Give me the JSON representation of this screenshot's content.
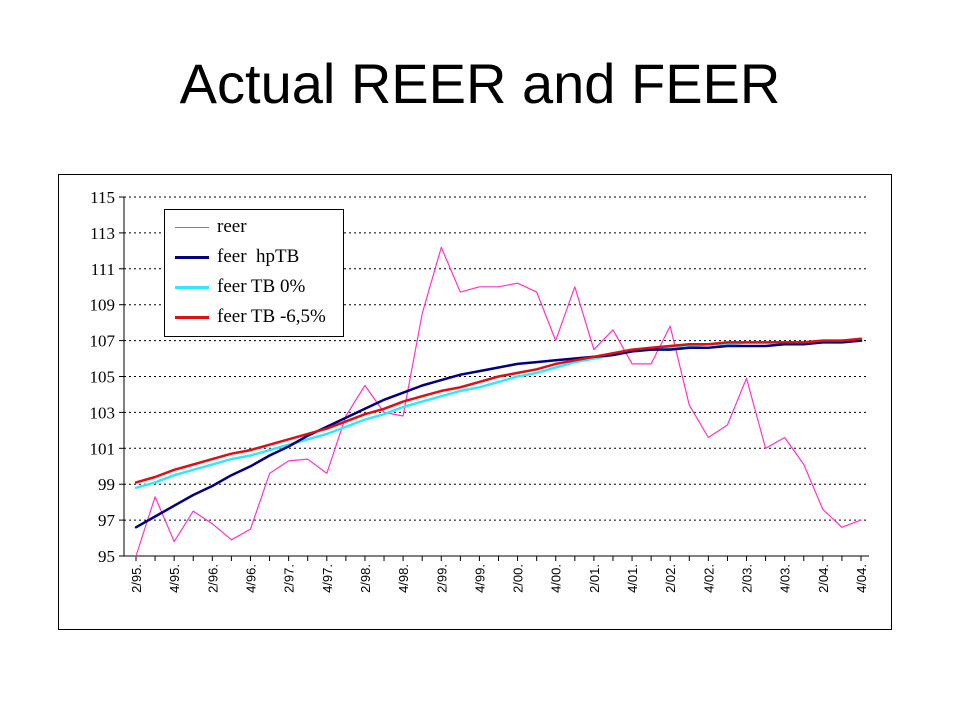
{
  "slide": {
    "title": "Actual REER and FEER"
  },
  "chart_data": {
    "type": "line",
    "title": "",
    "xlabel": "",
    "ylabel": "",
    "ylim": [
      95,
      115
    ],
    "yticks": [
      95,
      97,
      99,
      101,
      103,
      105,
      107,
      109,
      111,
      113,
      115
    ],
    "grid": "horizontal dotted",
    "legend_position": "top-left",
    "x_labels": [
      "2/95.",
      "4/95.",
      "2/96.",
      "4/96.",
      "2/97.",
      "4/97.",
      "2/98.",
      "4/98.",
      "2/99.",
      "4/99.",
      "2/00.",
      "4/00.",
      "2/01.",
      "4/01.",
      "2/02.",
      "4/02.",
      "2/03.",
      "4/03.",
      "2/04.",
      "4/04."
    ],
    "series": [
      {
        "name": "reer",
        "color": "#ff33cc",
        "values": [
          95.0,
          98.3,
          95.8,
          97.5,
          96.8,
          95.9,
          96.5,
          99.6,
          100.3,
          100.4,
          99.6,
          102.8,
          104.5,
          103.0,
          102.8,
          108.5,
          112.2,
          109.7,
          110.0,
          110.0,
          110.2,
          109.7,
          107.0,
          110.0,
          106.5,
          107.6,
          105.7,
          105.7,
          107.8,
          103.4,
          101.6,
          102.3,
          104.9,
          101.0,
          101.6,
          100.1,
          97.6,
          96.6,
          97.0
        ]
      },
      {
        "name": "feer  hpTB",
        "color": "#000080",
        "values": [
          96.6,
          97.2,
          97.8,
          98.4,
          98.9,
          99.5,
          100.0,
          100.6,
          101.1,
          101.7,
          102.2,
          102.7,
          103.2,
          103.7,
          104.1,
          104.5,
          104.8,
          105.1,
          105.3,
          105.5,
          105.7,
          105.8,
          105.9,
          106.0,
          106.1,
          106.2,
          106.4,
          106.5,
          106.5,
          106.6,
          106.6,
          106.7,
          106.7,
          106.7,
          106.8,
          106.8,
          106.9,
          106.9,
          107.0
        ]
      },
      {
        "name": "feer TB 0%",
        "color": "#33e6ff",
        "values": [
          98.8,
          99.1,
          99.5,
          99.8,
          100.1,
          100.4,
          100.6,
          100.9,
          101.2,
          101.5,
          101.8,
          102.2,
          102.6,
          102.9,
          103.3,
          103.6,
          103.9,
          104.2,
          104.4,
          104.7,
          105.0,
          105.2,
          105.5,
          105.8,
          106.0,
          106.2,
          106.4,
          106.5,
          106.6,
          106.7,
          106.8,
          106.8,
          106.9,
          106.9,
          106.9,
          106.9,
          107.0,
          107.0,
          107.0
        ]
      },
      {
        "name": "feer TB -6,5%",
        "color": "#dd1111",
        "values": [
          99.1,
          99.4,
          99.8,
          100.1,
          100.4,
          100.7,
          100.9,
          101.2,
          101.5,
          101.8,
          102.1,
          102.5,
          102.9,
          103.2,
          103.6,
          103.9,
          104.2,
          104.4,
          104.7,
          105.0,
          105.2,
          105.4,
          105.7,
          105.9,
          106.1,
          106.3,
          106.5,
          106.6,
          106.7,
          106.8,
          106.8,
          106.9,
          106.9,
          106.9,
          106.9,
          106.9,
          107.0,
          107.0,
          107.1
        ]
      }
    ]
  }
}
